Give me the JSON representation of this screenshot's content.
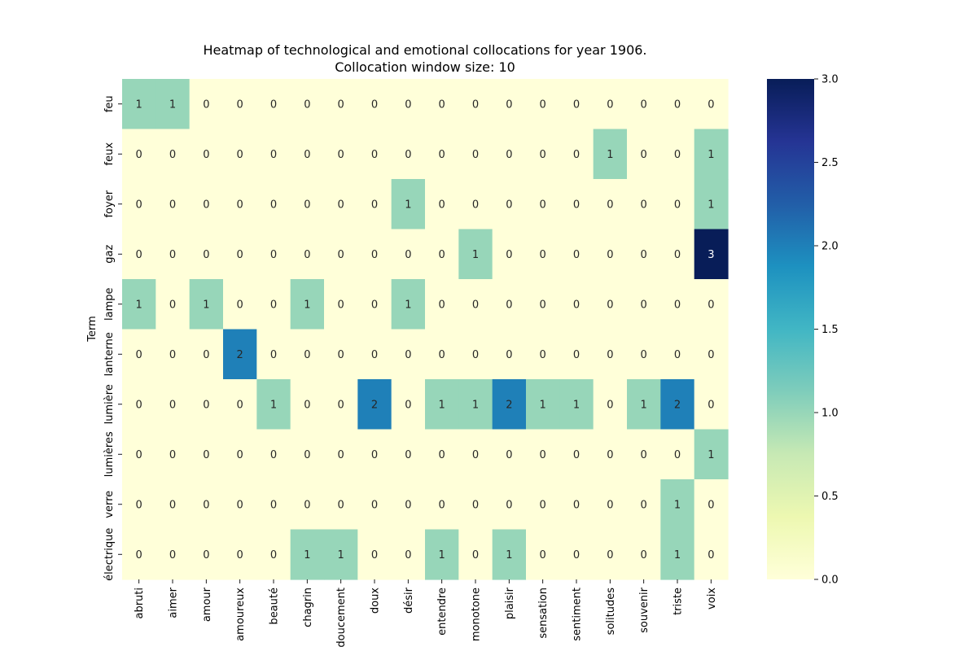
{
  "chart_data": {
    "type": "heatmap",
    "title_line1": "Heatmap of technological and emotional collocations for year 1906.",
    "title_line2": "Collocation window size: 10",
    "xlabel": "",
    "ylabel": "Term",
    "x_categories": [
      "abruti",
      "aimer",
      "amour",
      "amoureux",
      "beauté",
      "chagrin",
      "doucement",
      "doux",
      "désir",
      "entendre",
      "monotone",
      "plaisir",
      "sensation",
      "sentiment",
      "solitudes",
      "souvenir",
      "triste",
      "voix"
    ],
    "y_categories": [
      "feu",
      "feux",
      "foyer",
      "gaz",
      "lampe",
      "lanterne",
      "lumière",
      "lumières",
      "verre",
      "électrique"
    ],
    "values": [
      [
        1,
        1,
        0,
        0,
        0,
        0,
        0,
        0,
        0,
        0,
        0,
        0,
        0,
        0,
        0,
        0,
        0,
        0
      ],
      [
        0,
        0,
        0,
        0,
        0,
        0,
        0,
        0,
        0,
        0,
        0,
        0,
        0,
        0,
        1,
        0,
        0,
        1
      ],
      [
        0,
        0,
        0,
        0,
        0,
        0,
        0,
        0,
        1,
        0,
        0,
        0,
        0,
        0,
        0,
        0,
        0,
        1
      ],
      [
        0,
        0,
        0,
        0,
        0,
        0,
        0,
        0,
        0,
        0,
        1,
        0,
        0,
        0,
        0,
        0,
        0,
        3
      ],
      [
        1,
        0,
        1,
        0,
        0,
        1,
        0,
        0,
        1,
        0,
        0,
        0,
        0,
        0,
        0,
        0,
        0,
        0
      ],
      [
        0,
        0,
        0,
        2,
        0,
        0,
        0,
        0,
        0,
        0,
        0,
        0,
        0,
        0,
        0,
        0,
        0,
        0
      ],
      [
        0,
        0,
        0,
        0,
        1,
        0,
        0,
        2,
        0,
        1,
        1,
        2,
        1,
        1,
        0,
        1,
        2,
        0
      ],
      [
        0,
        0,
        0,
        0,
        0,
        0,
        0,
        0,
        0,
        0,
        0,
        0,
        0,
        0,
        0,
        0,
        0,
        1
      ],
      [
        0,
        0,
        0,
        0,
        0,
        0,
        0,
        0,
        0,
        0,
        0,
        0,
        0,
        0,
        0,
        0,
        1,
        0
      ],
      [
        0,
        0,
        0,
        0,
        0,
        1,
        1,
        0,
        0,
        1,
        0,
        1,
        0,
        0,
        0,
        0,
        1,
        0
      ]
    ],
    "color_scale": {
      "name": "YlGnBu",
      "min": 0.0,
      "max": 3.0,
      "stops": [
        "#ffffd9",
        "#edf8b1",
        "#c7e9b4",
        "#7fcdbb",
        "#41b6c4",
        "#1d91c0",
        "#225ea8",
        "#253494",
        "#081d58"
      ]
    },
    "colorbar_ticks": [
      "0.0",
      "0.5",
      "1.0",
      "1.5",
      "2.0",
      "2.5",
      "3.0"
    ],
    "annotations": true,
    "grid": false
  }
}
